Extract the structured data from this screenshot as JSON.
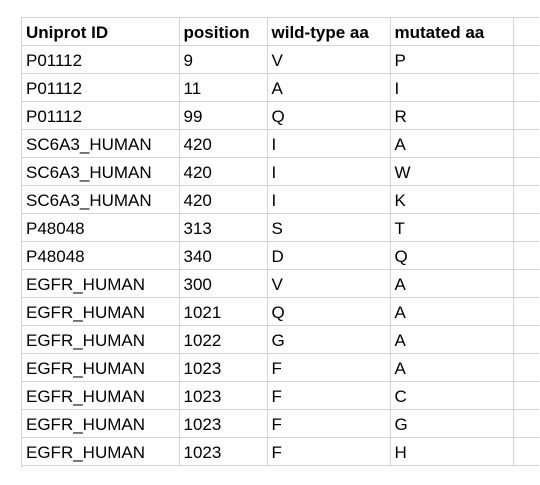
{
  "sheet": {
    "headers": [
      "Uniprot ID",
      "position",
      "wild-type aa",
      "mutated aa"
    ],
    "rows": [
      [
        "P01112",
        "9",
        "V",
        "P"
      ],
      [
        "P01112",
        "11",
        "A",
        "I"
      ],
      [
        "P01112",
        "99",
        "Q",
        "R"
      ],
      [
        "SC6A3_HUMAN",
        "420",
        "I",
        "A"
      ],
      [
        "SC6A3_HUMAN",
        "420",
        "I",
        "W"
      ],
      [
        "SC6A3_HUMAN",
        "420",
        "I",
        "K"
      ],
      [
        "P48048",
        "313",
        "S",
        "T"
      ],
      [
        "P48048",
        "340",
        "D",
        "Q"
      ],
      [
        "EGFR_HUMAN",
        "300",
        "V",
        "A"
      ],
      [
        "EGFR_HUMAN",
        "1021",
        "Q",
        "A"
      ],
      [
        "EGFR_HUMAN",
        "1022",
        "G",
        "A"
      ],
      [
        "EGFR_HUMAN",
        "1023",
        "F",
        "A"
      ],
      [
        "EGFR_HUMAN",
        "1023",
        "F",
        "C"
      ],
      [
        "EGFR_HUMAN",
        "1023",
        "F",
        "G"
      ],
      [
        "EGFR_HUMAN",
        "1023",
        "F",
        "H"
      ]
    ]
  }
}
